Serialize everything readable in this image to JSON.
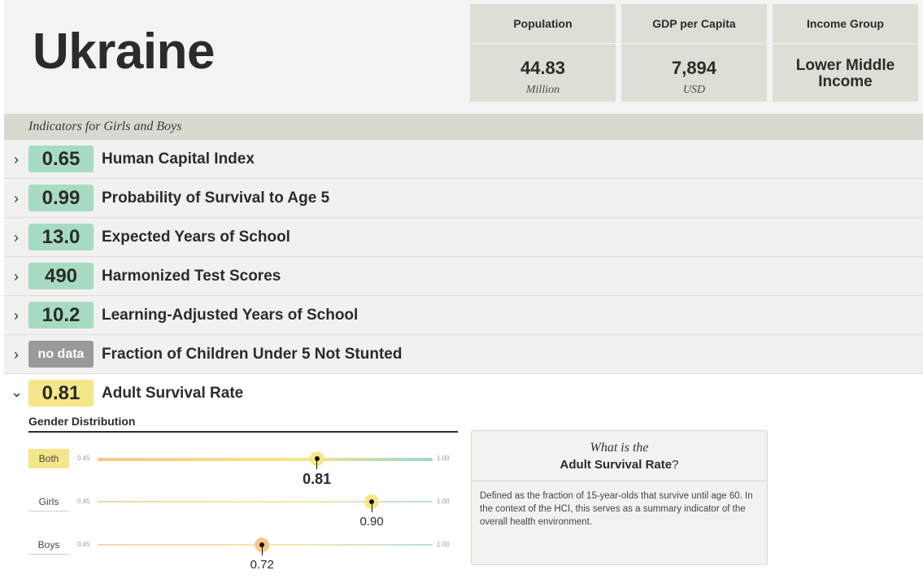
{
  "country": "Ukraine",
  "stats": [
    {
      "label": "Population",
      "value": "44.83",
      "unit": "Million"
    },
    {
      "label": "GDP per Capita",
      "value": "7,894",
      "unit": "USD"
    },
    {
      "label": "Income Group",
      "value": "Lower Middle Income",
      "value_line1": "Lower Middle",
      "value_line2": "Income"
    }
  ],
  "indicators_header": "Indicators for Girls and Boys",
  "indicators": [
    {
      "value": "0.65",
      "label": "Human Capital Index",
      "status": "green"
    },
    {
      "value": "0.99",
      "label": "Probability of Survival to Age 5",
      "status": "green"
    },
    {
      "value": "13.0",
      "label": "Expected Years of School",
      "status": "green"
    },
    {
      "value": "490",
      "label": "Harmonized Test Scores",
      "status": "green"
    },
    {
      "value": "10.2",
      "label": "Learning-Adjusted Years of School",
      "status": "green"
    },
    {
      "value": "no data",
      "label": "Fraction of Children Under 5 Not Stunted",
      "status": "nodata"
    },
    {
      "value": "0.81",
      "label": "Adult Survival Rate",
      "status": "yellow",
      "expanded": true
    }
  ],
  "expanded": {
    "gender_title": "Gender Distribution",
    "scale_min": "0.45",
    "scale_max": "1.00",
    "range": [
      0.45,
      1.0
    ],
    "genders": [
      {
        "label": "Both",
        "value": 0.81,
        "display": "0.81",
        "active": true
      },
      {
        "label": "Girls",
        "value": 0.9,
        "display": "0.90",
        "active": false
      },
      {
        "label": "Boys",
        "value": 0.72,
        "display": "0.72",
        "active": false
      }
    ],
    "info": {
      "question_prefix": "What is the",
      "question_term": "Adult Survival Rate",
      "question_suffix": "?",
      "definition": "Defined as the fraction of 15-year-olds that survive until age 60. In the context of the HCI, this serves as a summary indicator of the overall health environment."
    }
  },
  "colors": {
    "good": "#a8dbc3",
    "medium": "#f5e68a",
    "nodata": "#9a9a9a",
    "low_marker": "#f5c98a"
  },
  "icons": {
    "collapsed": "chevron-right-icon",
    "expanded": "chevron-down-icon"
  }
}
